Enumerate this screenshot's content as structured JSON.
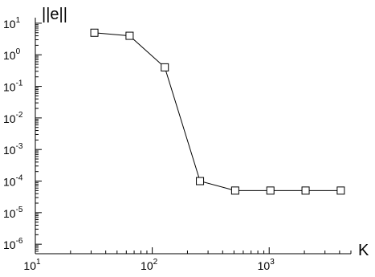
{
  "chart_data": {
    "type": "line",
    "xlabel": "K",
    "ylabel": "||e||",
    "xscale": "log",
    "yscale": "log",
    "xlim": [
      10,
      5000
    ],
    "ylim": [
      5e-07,
      15
    ],
    "grid": false,
    "x_ticks": [
      {
        "base": "10",
        "exp": "1",
        "value": 10
      },
      {
        "base": "10",
        "exp": "2",
        "value": 100
      },
      {
        "base": "10",
        "exp": "3",
        "value": 1000
      }
    ],
    "y_ticks": [
      {
        "base": "10",
        "exp": "1",
        "value": 10
      },
      {
        "base": "10",
        "exp": "0",
        "value": 1
      },
      {
        "base": "10",
        "exp": "-1",
        "value": 0.1
      },
      {
        "base": "10",
        "exp": "-2",
        "value": 0.01
      },
      {
        "base": "10",
        "exp": "-3",
        "value": 0.001
      },
      {
        "base": "10",
        "exp": "-4",
        "value": 0.0001
      },
      {
        "base": "10",
        "exp": "-5",
        "value": 1e-05
      },
      {
        "base": "10",
        "exp": "-6",
        "value": 1e-06
      }
    ],
    "series": [
      {
        "marker": "square",
        "x": [
          32,
          64,
          128,
          256,
          512,
          1024,
          2048,
          4096
        ],
        "y": [
          5.0,
          4.0,
          0.4,
          0.0001,
          5e-05,
          5e-05,
          5e-05,
          5e-05
        ]
      }
    ]
  }
}
